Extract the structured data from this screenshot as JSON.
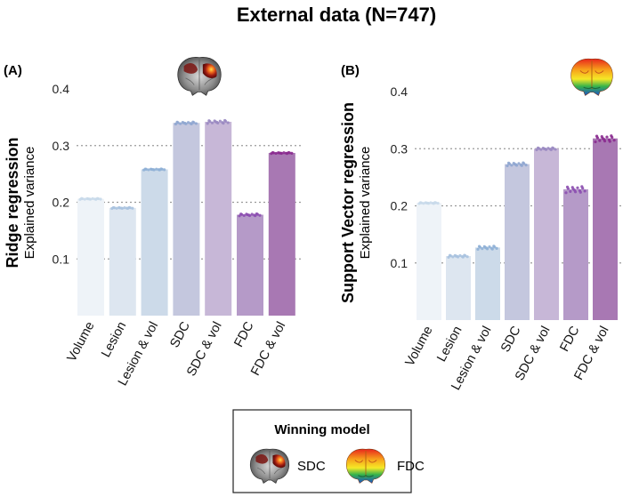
{
  "figure_title": "External data (N=747)",
  "legend": {
    "title": "Winning model",
    "items": [
      {
        "label": "SDC",
        "icon": "brain-heatmap-coronal-icon"
      },
      {
        "label": "FDC",
        "icon": "brain-rainbow-coronal-icon"
      }
    ]
  },
  "chart_data": [
    {
      "type": "bar",
      "panel": "(A)",
      "ylabel_main": "Ridge regression",
      "ylabel_sub": "Explained variance",
      "ylim": [
        0,
        0.4
      ],
      "yticks": [
        0.1,
        0.2,
        0.3,
        0.4
      ],
      "ytick_labels": [
        "0.1",
        "0.2",
        "0.3",
        "0.4"
      ],
      "grid": "dotted horizontal",
      "categories": [
        "Volume",
        "Lesion",
        "Lesion & vol",
        "SDC",
        "SDC & vol",
        "FDC",
        "FDC & vol"
      ],
      "values": [
        0.206,
        0.19,
        0.258,
        0.34,
        0.342,
        0.178,
        0.287
      ],
      "spread": [
        0.001,
        0.001,
        0.001,
        0.002,
        0.003,
        0.002,
        0.001
      ],
      "winning_model_icon": "SDC",
      "colors": [
        "#eef3f8",
        "#dde6f0",
        "#ccdae9",
        "#c4c7de",
        "#c7b7d7",
        "#b59ac8",
        "#a878b3"
      ],
      "point_colors": [
        "#c8d9ea",
        "#a9c2df",
        "#8fb0d6",
        "#8fa6d0",
        "#9a89c2",
        "#8c4fb0",
        "#8a2a8f"
      ]
    },
    {
      "type": "bar",
      "panel": "(B)",
      "ylabel_main": "Support Vector regression",
      "ylabel_sub": "Explained variance",
      "ylim": [
        0,
        0.4
      ],
      "yticks": [
        0.1,
        0.2,
        0.3,
        0.4
      ],
      "ytick_labels": [
        "0.1",
        "0.2",
        "0.3",
        "0.4"
      ],
      "grid": "dotted horizontal",
      "categories": [
        "Volume",
        "Lesion",
        "Lesion & vol",
        "SDC",
        "SDC & vol",
        "FDC",
        "FDC & vol"
      ],
      "values": [
        0.205,
        0.112,
        0.127,
        0.273,
        0.3,
        0.229,
        0.318
      ],
      "spread": [
        0.001,
        0.002,
        0.003,
        0.003,
        0.002,
        0.006,
        0.006
      ],
      "winning_model_icon": "FDC",
      "colors": [
        "#eef3f8",
        "#dde6f0",
        "#ccdae9",
        "#c4c7de",
        "#c7b7d7",
        "#b59ac8",
        "#a878b3"
      ],
      "point_colors": [
        "#c8d9ea",
        "#a9c2df",
        "#8fb0d6",
        "#8fa6d0",
        "#9a89c2",
        "#8c4fb0",
        "#8a2a8f"
      ]
    }
  ]
}
